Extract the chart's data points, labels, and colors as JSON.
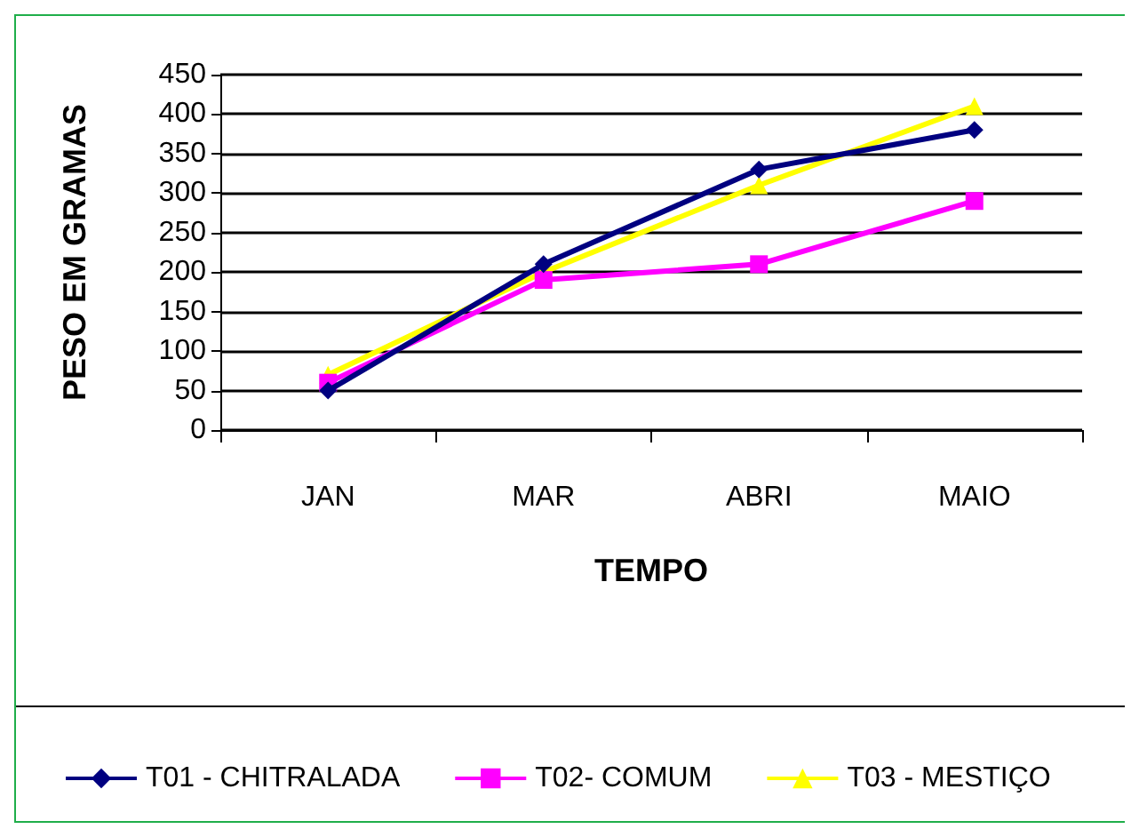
{
  "chart_data": {
    "type": "line",
    "xlabel": "TEMPO",
    "ylabel": "PESO EM GRAMAS",
    "categories": [
      "JAN",
      "MAR",
      "ABRI",
      "MAIO"
    ],
    "ylim": [
      0,
      450
    ],
    "yticks": [
      0,
      50,
      100,
      150,
      200,
      250,
      300,
      350,
      400,
      450
    ],
    "grid": "y",
    "legend": "bottom",
    "line_style": "solid",
    "series": [
      {
        "name": "T01 - CHITRALADA",
        "color": "#000080",
        "marker": "diamond",
        "values": [
          50,
          210,
          330,
          380
        ]
      },
      {
        "name": "T02- COMUM",
        "color": "#ff00ff",
        "marker": "square",
        "values": [
          60,
          190,
          210,
          290
        ]
      },
      {
        "name": "T03 - MESTIÇO",
        "color": "#ffff00",
        "marker": "triangle",
        "values": [
          70,
          200,
          310,
          410
        ]
      }
    ]
  }
}
